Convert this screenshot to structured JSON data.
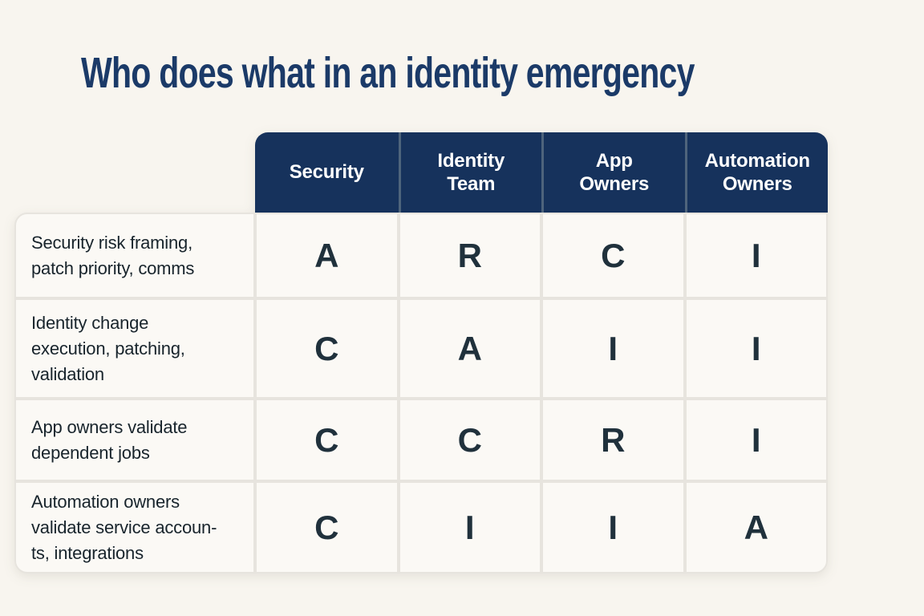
{
  "title": "Who does what in an identity emergency",
  "colors": {
    "page_background": "#f8f5ef",
    "header_background": "#16325c",
    "header_text": "#ffffff",
    "header_divider": "#4e647c",
    "title_text": "#1b3a68",
    "letter_text": "#20313c",
    "label_text": "#18242c",
    "grid_line": "#e7e4de",
    "cell_background": "#fbf9f5"
  },
  "table": {
    "columns": [
      "Security",
      "Identity\nTeam",
      "App\nOwners",
      "Automation\nOwners"
    ],
    "rows": [
      {
        "label": "Security risk framing,\npatch priority, comms",
        "values": [
          "A",
          "R",
          "C",
          "I"
        ]
      },
      {
        "label": "Identity change\nexecution, patching,\nvalidation",
        "values": [
          "C",
          "A",
          "I",
          "I"
        ]
      },
      {
        "label": "App owners validate\ndependent jobs",
        "values": [
          "C",
          "C",
          "R",
          "I"
        ]
      },
      {
        "label": "Automation owners\nvalidate service accoun-\nts, integrations",
        "values": [
          "C",
          "I",
          "I",
          "A"
        ]
      }
    ]
  },
  "chart_data": {
    "type": "table",
    "title": "Who does what in an identity emergency",
    "columns": [
      "Security",
      "Identity Team",
      "App Owners",
      "Automation Owners"
    ],
    "row_labels": [
      "Security risk framing, patch priority, comms",
      "Identity change execution, patching, validation",
      "App owners validate dependent jobs",
      "Automation owners validate service accounts, integrations"
    ],
    "values": [
      [
        "A",
        "R",
        "C",
        "I"
      ],
      [
        "C",
        "A",
        "I",
        "I"
      ],
      [
        "C",
        "C",
        "R",
        "I"
      ],
      [
        "C",
        "I",
        "I",
        "A"
      ]
    ],
    "legend_position": "none",
    "grid": true
  }
}
